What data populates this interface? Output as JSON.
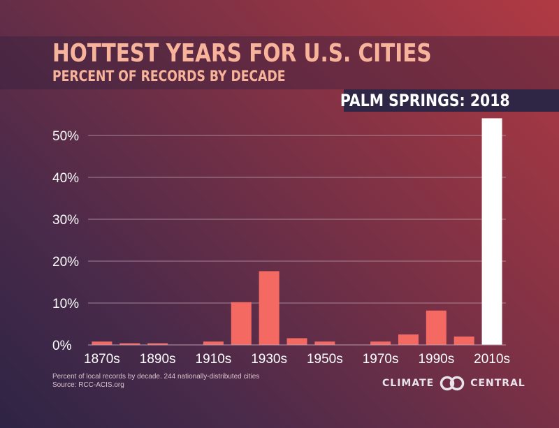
{
  "header": {
    "title": "HOTTEST YEARS FOR U.S. CITIES",
    "subtitle": "PERCENT OF RECORDS BY DECADE",
    "city_label": "PALM SPRINGS: 2018"
  },
  "footer": {
    "note_line1": "Percent of local records by decade. 244 nationally-distributed cities",
    "note_line2": "Source: RCC-ACIS.org",
    "logo_left": "CLIMATE",
    "logo_right": "CENTRAL",
    "logo_icon": "linked-rings-icon"
  },
  "colors": {
    "bar": "#f46a63",
    "highlight_bar": "#ffffff",
    "title": "#f7b49a",
    "grid": "#b99aaa"
  },
  "chart_data": {
    "type": "bar",
    "title": "HOTTEST YEARS FOR U.S. CITIES",
    "subtitle": "PERCENT OF RECORDS BY DECADE",
    "categories": [
      "1870s",
      "1880s",
      "1890s",
      "1900s",
      "1910s",
      "1920s",
      "1930s",
      "1940s",
      "1950s",
      "1960s",
      "1970s",
      "1980s",
      "1990s",
      "2000s",
      "2010s"
    ],
    "x_tick_labels": [
      "1870s",
      "",
      "1890s",
      "",
      "1910s",
      "",
      "1930s",
      "",
      "1950s",
      "",
      "1970s",
      "",
      "1990s",
      "",
      "2010s"
    ],
    "values": [
      0.8,
      0.4,
      0.4,
      0,
      0.8,
      10.2,
      17.6,
      1.6,
      0.8,
      0,
      0.8,
      2.5,
      8.2,
      2.0,
      54.1
    ],
    "highlight_index": 14,
    "ylim": [
      0,
      55
    ],
    "yticks": [
      0,
      10,
      20,
      30,
      40,
      50
    ],
    "ytick_labels": [
      "0%",
      "10%",
      "20%",
      "30%",
      "40%",
      "50%"
    ],
    "grid": true,
    "xlabel": "",
    "ylabel": ""
  }
}
